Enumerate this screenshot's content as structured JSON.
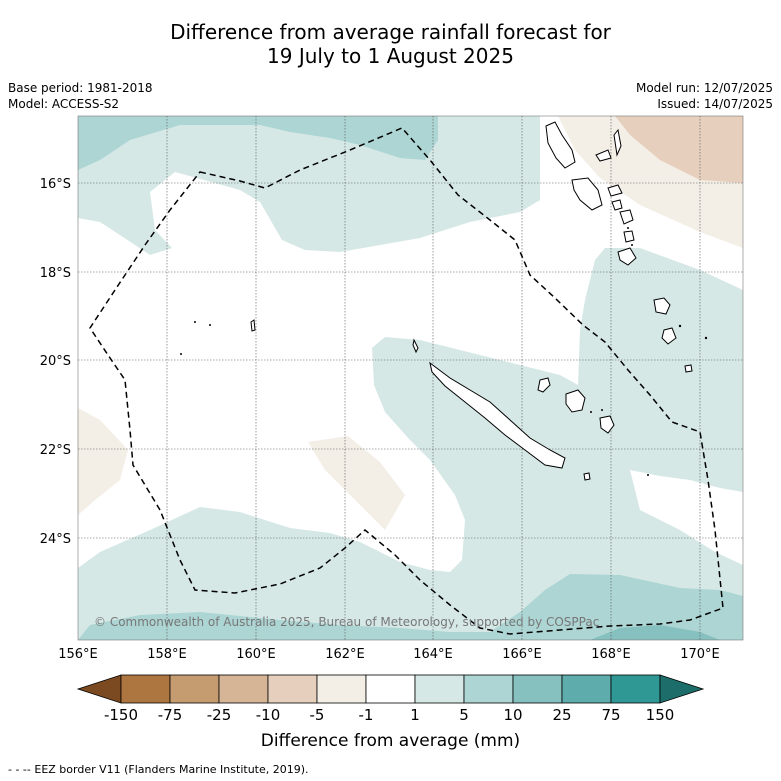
{
  "header": {
    "title_line1": "Difference from average rainfall forecast for",
    "title_line2": "19 July to 1 August 2025"
  },
  "meta": {
    "base_period": "Base period: 1981-2018",
    "model": "Model: ACCESS-S2",
    "model_run": "Model run: 12/07/2025",
    "issued": "Issued: 14/07/2025"
  },
  "map": {
    "lon_labels": [
      "156°E",
      "158°E",
      "160°E",
      "162°E",
      "164°E",
      "166°E",
      "168°E",
      "170°E"
    ],
    "lat_labels": [
      "16°S",
      "18°S",
      "20°S",
      "22°S",
      "24°S"
    ],
    "copyright": "© Commonwealth of Australia 2025, Bureau of Meteorology, supported by COSPPac",
    "lon_range": [
      156,
      171
    ],
    "lat_range": [
      -26.2,
      -14.6
    ]
  },
  "colorbar": {
    "title": "Difference from average (mm)",
    "labels": [
      "-150",
      "-75",
      "-25",
      "-10",
      "-5",
      "-1",
      "1",
      "5",
      "10",
      "25",
      "75",
      "150"
    ],
    "colors": [
      "#7b4a21",
      "#ad7640",
      "#c59b70",
      "#d6b496",
      "#e6d0bd",
      "#f3eee6",
      "#ffffff",
      "#d5e8e6",
      "#acd5d3",
      "#86c1bf",
      "#5eacab",
      "#2f9894",
      "#1d6e6a"
    ]
  },
  "legend": {
    "eez_text": "- -  -- EEZ border V11 (Flanders Marine Institute, 2019)."
  }
}
